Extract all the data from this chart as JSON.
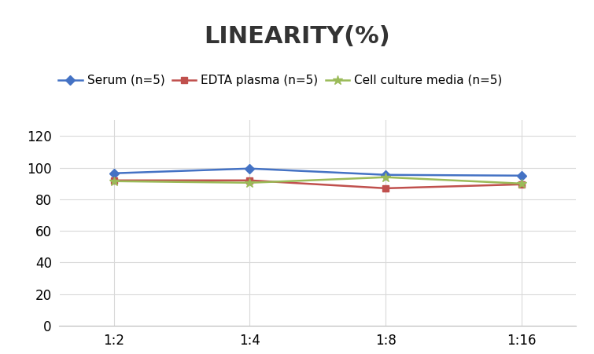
{
  "title": "LINEARITY(%)",
  "x_labels": [
    "1:2",
    "1:4",
    "1:8",
    "1:16"
  ],
  "x_positions": [
    0,
    1,
    2,
    3
  ],
  "series": [
    {
      "label": "Serum (n=5)",
      "values": [
        96.5,
        99.5,
        95.5,
        95.0
      ],
      "color": "#4472C4",
      "marker": "D",
      "marker_size": 6,
      "linewidth": 1.8
    },
    {
      "label": "EDTA plasma (n=5)",
      "values": [
        92.0,
        92.0,
        87.0,
        89.5
      ],
      "color": "#C0504D",
      "marker": "s",
      "marker_size": 6,
      "linewidth": 1.8
    },
    {
      "label": "Cell culture media (n=5)",
      "values": [
        91.5,
        90.5,
        94.0,
        90.0
      ],
      "color": "#9BBB59",
      "marker": "*",
      "marker_size": 9,
      "linewidth": 1.8
    }
  ],
  "ylim": [
    0,
    130
  ],
  "yticks": [
    0,
    20,
    40,
    60,
    80,
    100,
    120
  ],
  "background_color": "#ffffff",
  "grid_color": "#d9d9d9",
  "title_fontsize": 22,
  "legend_fontsize": 11,
  "tick_fontsize": 12
}
